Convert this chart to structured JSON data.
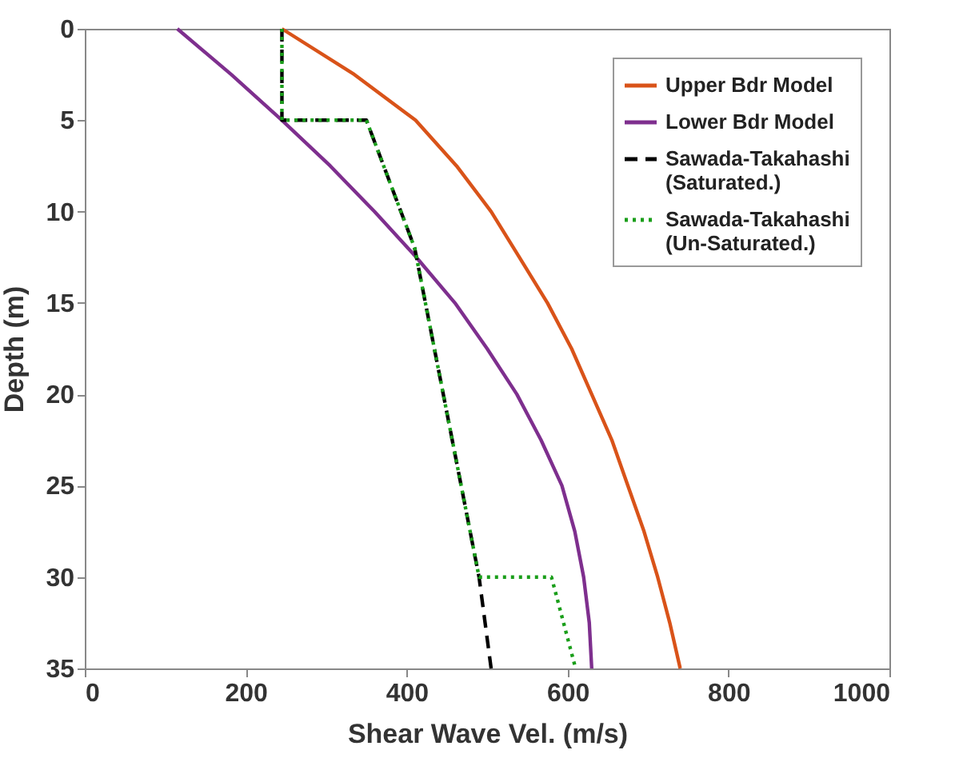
{
  "chart_data": {
    "type": "line",
    "xlabel": "Shear Wave Vel. (m/s)",
    "ylabel": "Depth (m)",
    "xlim": [
      0,
      1000
    ],
    "xticks": [
      0,
      200,
      400,
      600,
      800,
      1000
    ],
    "ylim": [
      35,
      0
    ],
    "yticks": [
      0,
      5,
      10,
      15,
      20,
      25,
      30,
      35
    ],
    "grid": false,
    "legend": "top right",
    "marker": "none",
    "series": [
      {
        "name": "Upper Bdr Model",
        "color": "#d95319",
        "line_style": "solid",
        "x": [
          245,
          335,
          411,
          462,
          505,
          540,
          575,
          605,
          630,
          655,
          675,
          695,
          712,
          727,
          740
        ],
        "values": [
          0,
          2.5,
          5,
          7.5,
          10,
          12.5,
          15,
          17.5,
          20,
          22.5,
          25,
          27.5,
          30,
          32.5,
          35
        ]
      },
      {
        "name": "Lower Bdr Model",
        "color": "#7e2f8e",
        "line_style": "solid",
        "x": [
          115,
          182,
          245,
          305,
          360,
          412,
          460,
          500,
          537,
          567,
          593,
          609,
          620,
          627,
          630
        ],
        "values": [
          0,
          2.5,
          5,
          7.5,
          10,
          12.5,
          15,
          17.5,
          20,
          22.5,
          25,
          27.5,
          30,
          32.5,
          35
        ]
      },
      {
        "name": "Sawada-Takahashi (Saturated.)",
        "color": "#000000",
        "line_style": "dashed",
        "x": [
          245,
          245,
          350,
          410,
          490,
          505
        ],
        "values": [
          0,
          5,
          5,
          12,
          30,
          35
        ]
      },
      {
        "name": "Sawada-Takahashi (Un-Saturated.)",
        "color": "#1a9e1a",
        "line_style": "dotted",
        "x": [
          245,
          245,
          350,
          410,
          490,
          580,
          610
        ],
        "values": [
          0,
          5,
          5,
          12,
          30,
          30,
          35
        ]
      }
    ]
  }
}
